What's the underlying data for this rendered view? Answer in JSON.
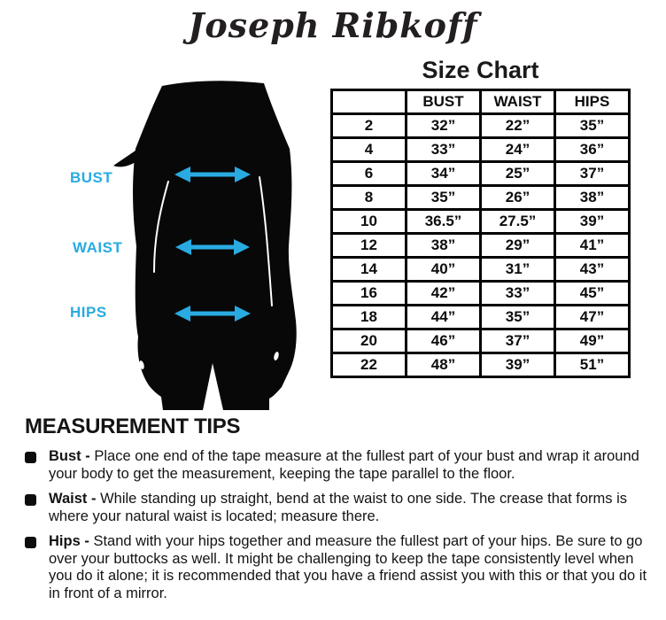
{
  "brand": {
    "logo_text": "Joseph Ribkoff"
  },
  "colors": {
    "accent": "#29ABE2",
    "ink": "#0d0d0d"
  },
  "figure": {
    "silhouette_icon": "woman-body-silhouette",
    "labels": [
      {
        "text": "BUST"
      },
      {
        "text": "WAIST"
      },
      {
        "text": "HIPS"
      }
    ]
  },
  "size_chart": {
    "title": "Size Chart",
    "columns": [
      "",
      "BUST",
      "WAIST",
      "HIPS"
    ],
    "rows": [
      [
        "2",
        "32”",
        "22”",
        "35”"
      ],
      [
        "4",
        "33”",
        "24”",
        "36”"
      ],
      [
        "6",
        "34”",
        "25”",
        "37”"
      ],
      [
        "8",
        "35”",
        "26”",
        "38”"
      ],
      [
        "10",
        "36.5”",
        "27.5”",
        "39”"
      ],
      [
        "12",
        "38”",
        "29”",
        "41”"
      ],
      [
        "14",
        "40”",
        "31”",
        "43”"
      ],
      [
        "16",
        "42”",
        "33”",
        "45”"
      ],
      [
        "18",
        "44”",
        "35”",
        "47”"
      ],
      [
        "20",
        "46”",
        "37”",
        "49”"
      ],
      [
        "22",
        "48”",
        "39”",
        "51”"
      ]
    ]
  },
  "tips": {
    "title": "MEASUREMENT TIPS",
    "separator": " - ",
    "items": [
      {
        "term": "Bust",
        "text": "Place one end of the tape measure at the fullest part of your bust and wrap it around your body to get the measurement, keeping the tape parallel to the floor."
      },
      {
        "term": "Waist",
        "text": "While standing up straight, bend at the waist to one side. The crease that forms is where your natural waist is located; measure there."
      },
      {
        "term": "Hips",
        "text": "Stand with your hips together and measure the fullest part of your hips. Be sure to go over your buttocks as well. It might be challenging to keep the tape consistently level when you do it alone; it is recommended that you have a friend assist you with this or that you do it in front of a mirror."
      }
    ]
  }
}
